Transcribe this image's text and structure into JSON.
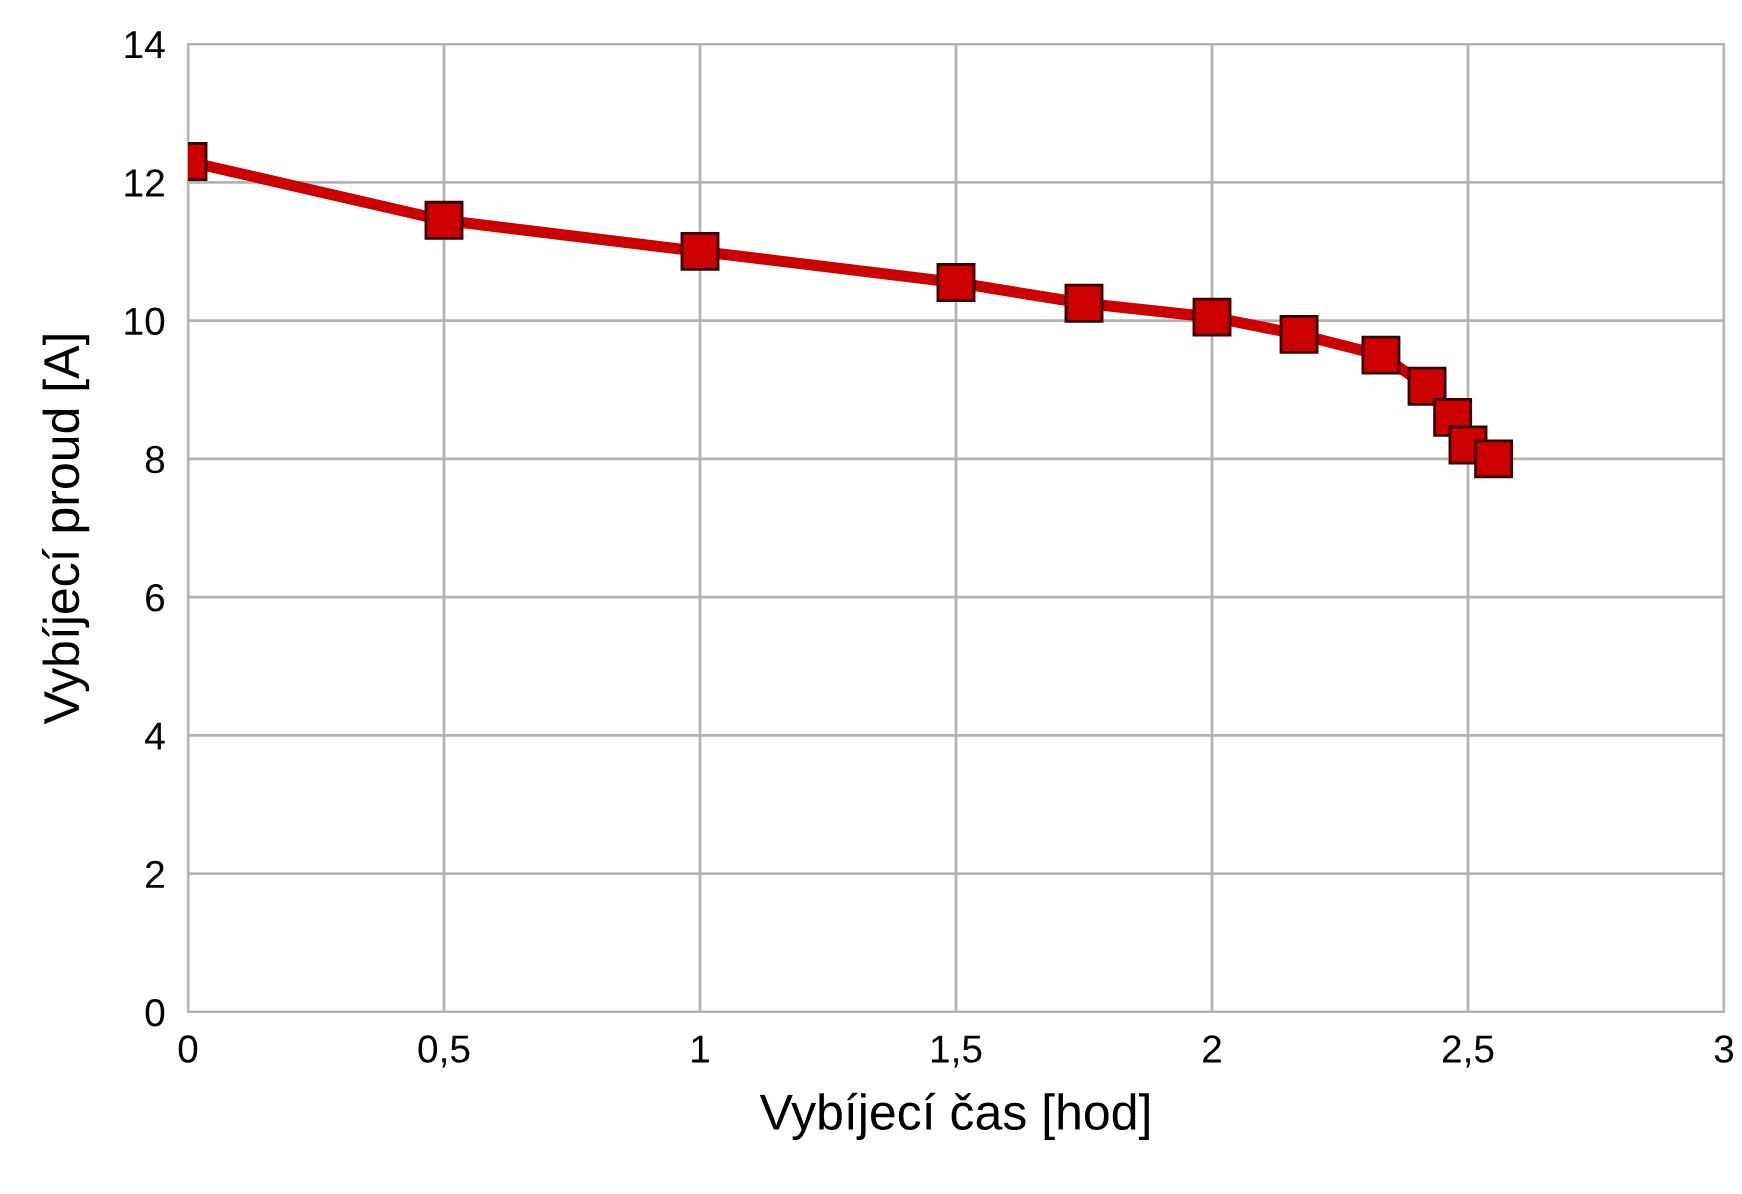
{
  "chart_data": {
    "type": "line",
    "xlabel": "Vybíjecí čas [hod]",
    "ylabel": "Vybíjecí proud [A]",
    "x": [
      0,
      0.5,
      1,
      1.5,
      1.75,
      2,
      2.17,
      2.33,
      2.42,
      2.47,
      2.5,
      2.55
    ],
    "series": [
      {
        "color": "#cc0000",
        "values": [
          12.3,
          11.45,
          11.0,
          10.55,
          10.25,
          10.05,
          9.8,
          9.5,
          9.05,
          8.6,
          8.2,
          8.0
        ]
      }
    ],
    "xlim": [
      0,
      3
    ],
    "xticks": [
      0,
      {
        "value": 0.5,
        "label": "0,5"
      },
      1,
      {
        "value": 1.5,
        "label": "1,5"
      },
      2,
      {
        "value": 2.5,
        "label": "2,5"
      },
      3
    ],
    "ylim": [
      0,
      14
    ],
    "yticks": [
      0,
      2,
      4,
      6,
      8,
      10,
      12,
      14
    ],
    "grid": true,
    "marker": "square",
    "line_style": "solid",
    "legend": false
  }
}
